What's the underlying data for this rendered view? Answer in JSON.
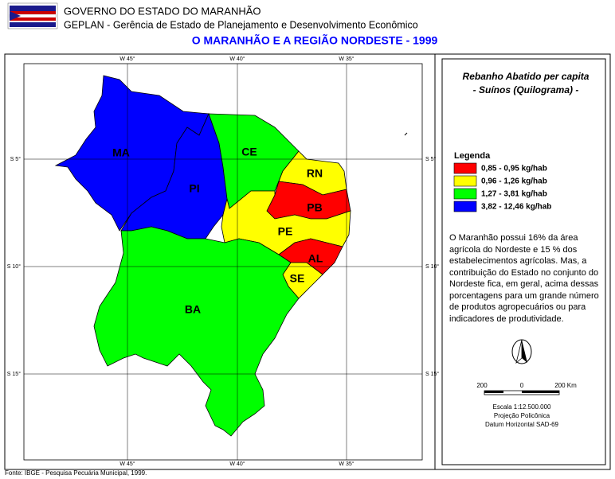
{
  "header": {
    "line1": "GOVERNO DO ESTADO DO MARANHÃO",
    "line2": "GEPLAN - Gerência de Estado de Planejamento e Desenvolvimento Econômico",
    "title": "O MARANHÃO E A REGIÃO NORDESTE - 1999"
  },
  "grid": {
    "meridians": [
      "W 45°",
      "W 40°",
      "W 35°"
    ],
    "parallels": [
      "S 5°",
      "S 10°",
      "S 15°"
    ]
  },
  "states": [
    {
      "label": "MA",
      "color": "#0000ff"
    },
    {
      "label": "PI",
      "color": "#0000ff"
    },
    {
      "label": "CE",
      "color": "#00ff00"
    },
    {
      "label": "RN",
      "color": "#ffff00"
    },
    {
      "label": "PB",
      "color": "#ff0000"
    },
    {
      "label": "PE",
      "color": "#ffff00"
    },
    {
      "label": "AL",
      "color": "#ff0000"
    },
    {
      "label": "SE",
      "color": "#ffff00"
    },
    {
      "label": "BA",
      "color": "#00ff00"
    }
  ],
  "panel": {
    "title1": "Rebanho Abatido per capita",
    "title2": "- Suínos (Quilograma) -",
    "legend_title": "Legenda",
    "legend": [
      {
        "label": "0,85 - 0,95 kg/hab",
        "color": "#ff0000"
      },
      {
        "label": "0,96 - 1,26 kg/hab",
        "color": "#ffff00"
      },
      {
        "label": "1,27 - 3,81 kg/hab",
        "color": "#00ff00"
      },
      {
        "label": "3,82 - 12,46 kg/hab",
        "color": "#0000ff"
      }
    ],
    "note": "O Maranhão possui 16% da área agrícola do Nordeste e 15 % dos estabelecimentos agrícolas. Mas, a contribuição do Estado no conjunto do Nordeste fica, em geral, acima dessas porcentagens para um grande número de produtos agropecuários ou para indicadores de produtividade.",
    "scale_labels": [
      "200",
      "0",
      "200 Km"
    ],
    "scale": "Escala 1:12.500.000",
    "projection": "Projeção Policônica",
    "datum": "Datum Horizontal SAD-69"
  },
  "footer": "Fonte: IBGE - Pesquisa Pecuária Municipal, 1999."
}
